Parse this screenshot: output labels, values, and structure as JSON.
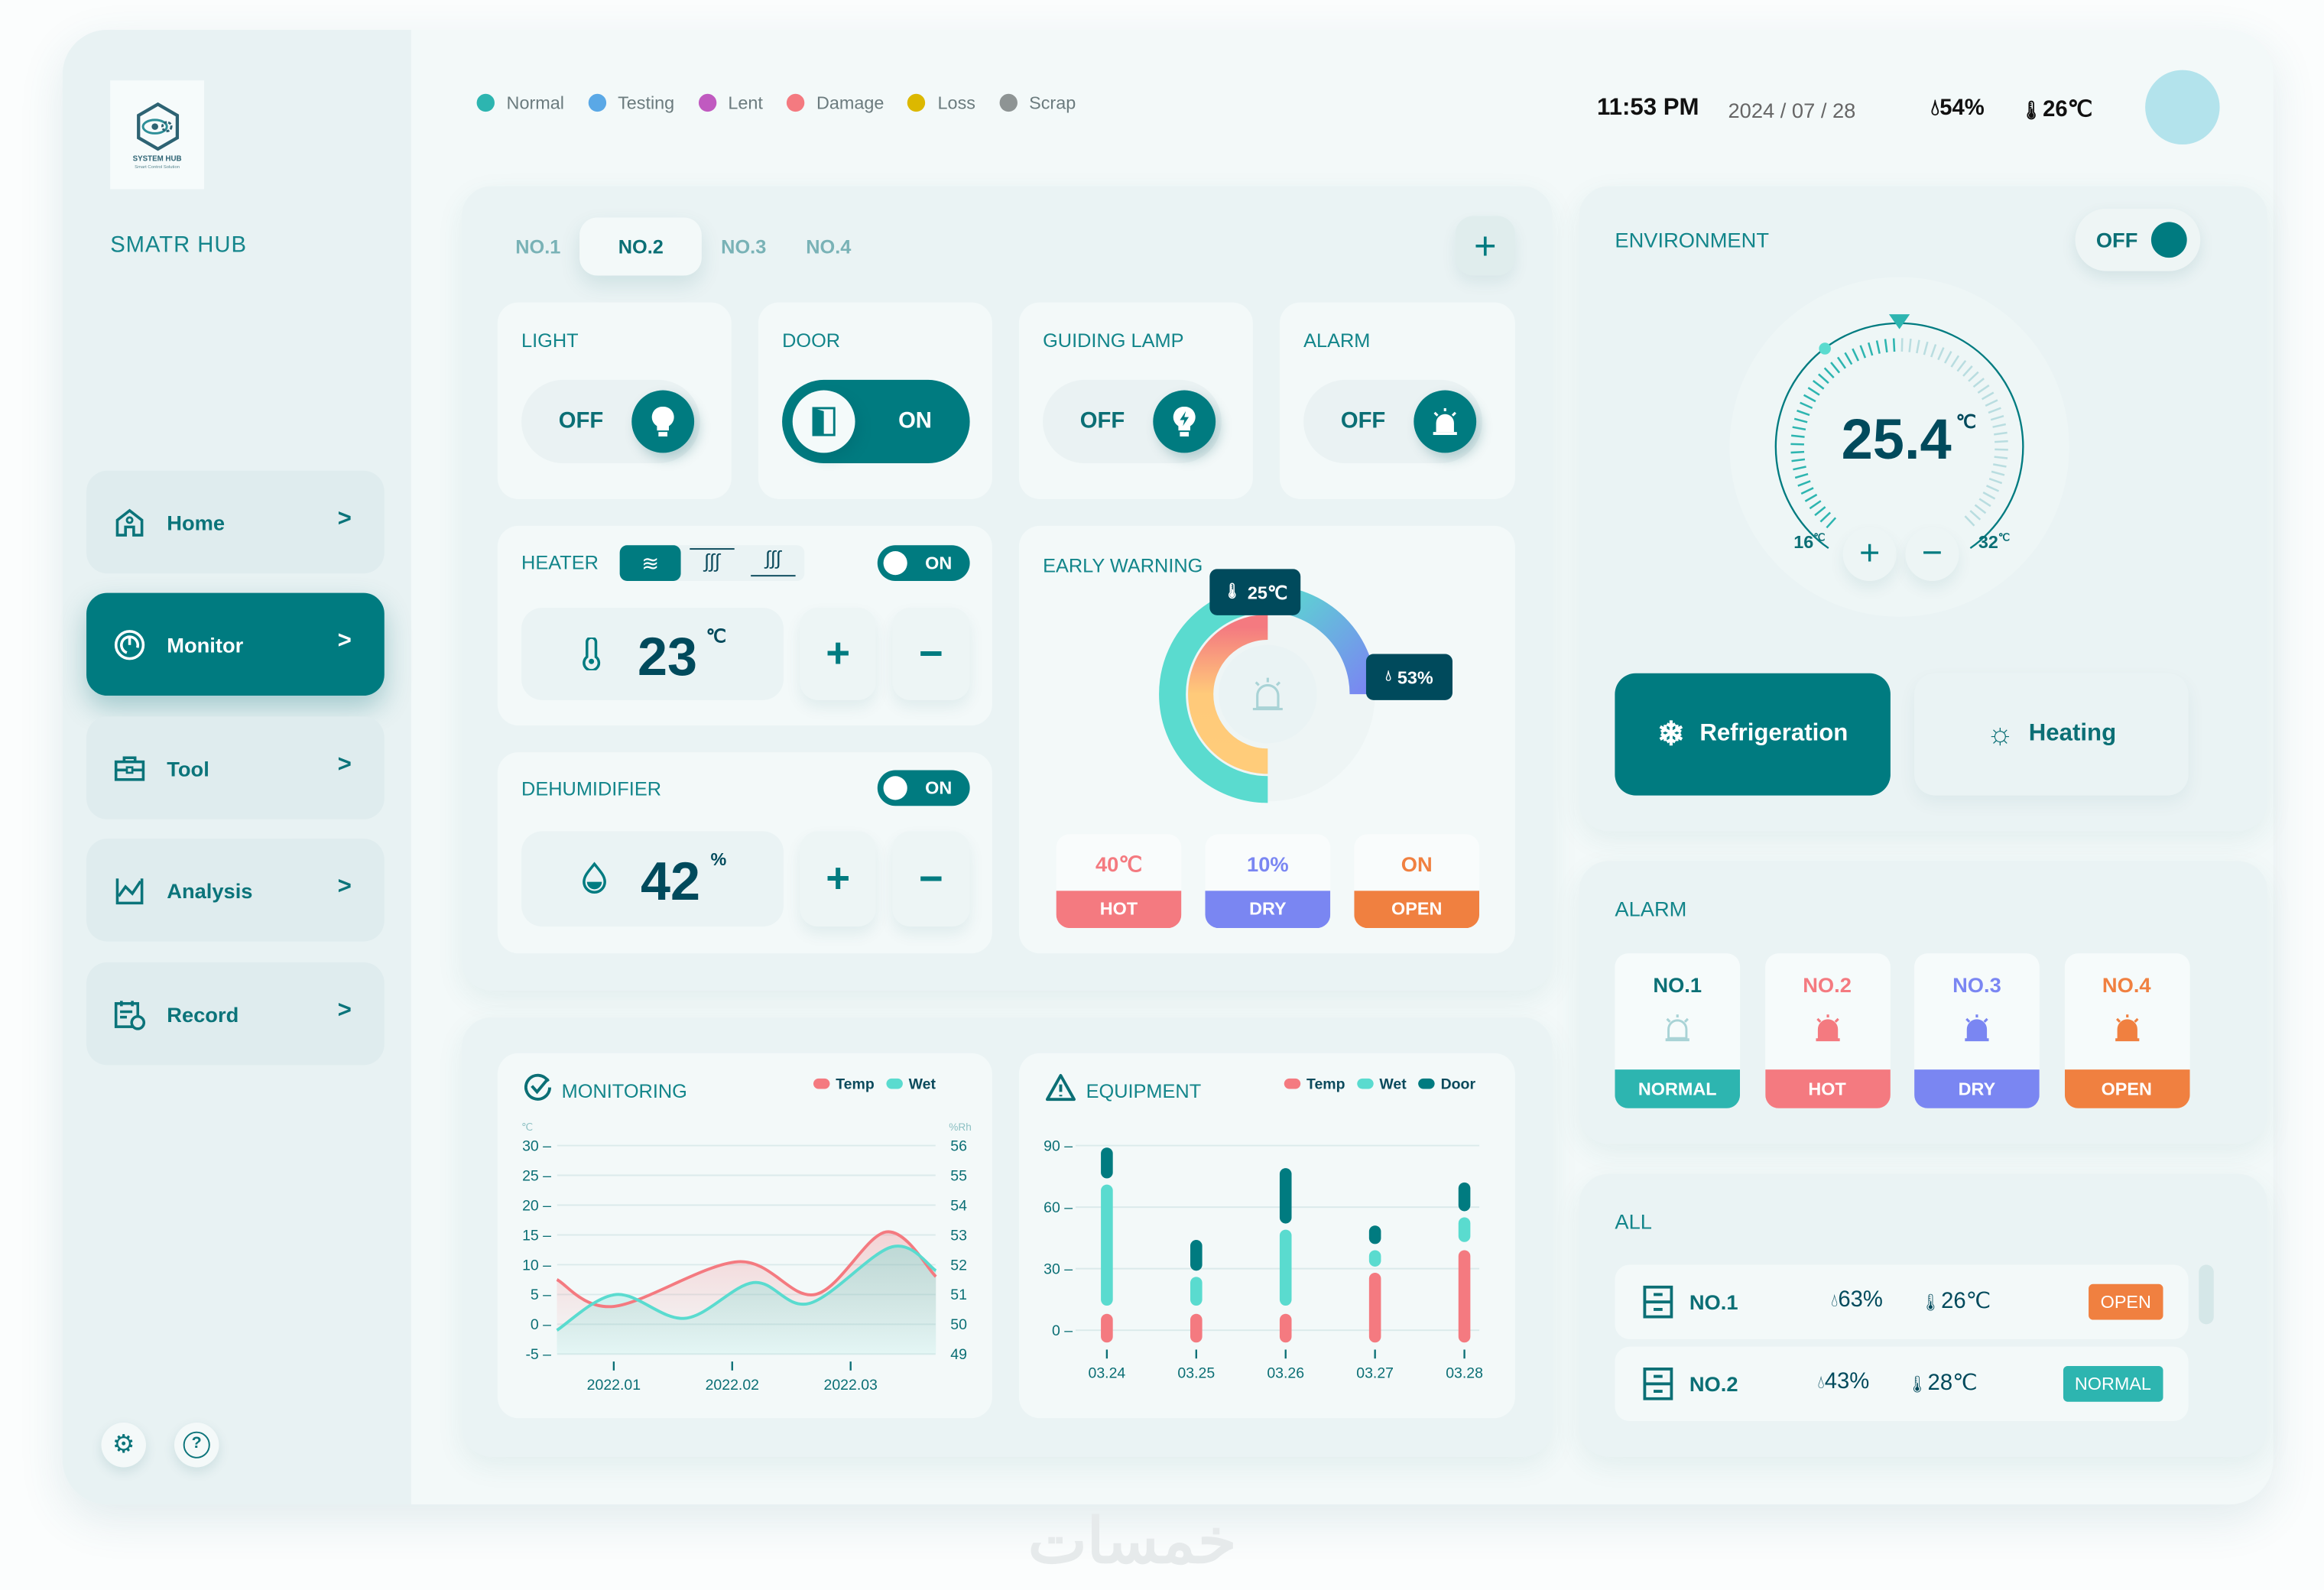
{
  "brand": {
    "logo_text": "SYSTEM HUB",
    "logo_tagline": "Smart Control Solution",
    "name": "SMATR HUB"
  },
  "nav": [
    {
      "label": "Home",
      "icon": "home-icon",
      "active": false
    },
    {
      "label": "Monitor",
      "icon": "monitor-icon",
      "active": true
    },
    {
      "label": "Tool",
      "icon": "toolbox-icon",
      "active": false
    },
    {
      "label": "Analysis",
      "icon": "analysis-chart-icon",
      "active": false
    },
    {
      "label": "Record",
      "icon": "calendar-clock-icon",
      "active": false
    }
  ],
  "sidebar_footer": {
    "settings_icon": "gear-icon",
    "help_icon": "help-icon"
  },
  "legend": [
    {
      "label": "Normal",
      "color": "#2db5b0"
    },
    {
      "label": "Testing",
      "color": "#5aa8e6"
    },
    {
      "label": "Lent",
      "color": "#c05ac0"
    },
    {
      "label": "Damage",
      "color": "#f47a80"
    },
    {
      "label": "Loss",
      "color": "#dcb800"
    },
    {
      "label": "Scrap",
      "color": "#8e9494"
    }
  ],
  "header": {
    "time": "11:53 PM",
    "date": "2024 / 07 / 28",
    "humidity": "54%",
    "temperature": "26℃",
    "avatar_color": "#b3e3ec"
  },
  "tabs": {
    "items": [
      "NO.1",
      "NO.2",
      "NO.3",
      "NO.4"
    ],
    "active": "NO.2",
    "add_icon": "plus-icon"
  },
  "devices": [
    {
      "label": "LIGHT",
      "state": "OFF",
      "icon": "lightbulb-icon"
    },
    {
      "label": "DOOR",
      "state": "ON",
      "icon": "door-icon"
    },
    {
      "label": "GUIDING LAMP",
      "state": "OFF",
      "icon": "lamp-bolt-icon"
    },
    {
      "label": "ALARM",
      "state": "OFF",
      "icon": "siren-icon"
    }
  ],
  "heater": {
    "label": "HEATER",
    "modes": [
      "fan-icon",
      "heat-top-icon",
      "heat-bottom-icon"
    ],
    "active_mode": "fan-icon",
    "toggle": "ON",
    "value": "23",
    "unit": "℃",
    "plus": "+",
    "minus": "−"
  },
  "dehumidifier": {
    "label": "DEHUMIDIFIER",
    "toggle": "ON",
    "value": "42",
    "unit": "%",
    "plus": "+",
    "minus": "−"
  },
  "early_warning": {
    "title": "EARLY WARNING",
    "temp_tip": "25℃",
    "humidity_tip": "53%",
    "tiles": [
      {
        "value": "40℃",
        "status": "HOT",
        "color": "#f47a80",
        "icon": "thermometer-icon"
      },
      {
        "value": "10%",
        "status": "DRY",
        "color": "#7a86f2",
        "icon": "droplet-icon"
      },
      {
        "value": "ON",
        "status": "OPEN",
        "color": "#f08040",
        "icon": "door-icon"
      }
    ]
  },
  "environment": {
    "title": "ENVIRONMENT",
    "toggle": "OFF",
    "value": "25.4",
    "unit": "℃",
    "min": "16",
    "max": "32",
    "range_unit": "℃",
    "plus": "+",
    "minus": "−",
    "modes": [
      {
        "label": "Refrigeration",
        "icon": "snowflake-icon",
        "active": true
      },
      {
        "label": "Heating",
        "icon": "sun-icon",
        "active": false
      }
    ]
  },
  "alarm": {
    "title": "ALARM",
    "items": [
      {
        "label": "NO.1",
        "status": "NORMAL",
        "color": "#2db5b0",
        "icon_color": "#a9d3d6"
      },
      {
        "label": "NO.2",
        "status": "HOT",
        "color": "#f47a80",
        "icon_color": "#f47a80"
      },
      {
        "label": "NO.3",
        "status": "DRY",
        "color": "#7a86f2",
        "icon_color": "#7a86f2"
      },
      {
        "label": "NO.4",
        "status": "OPEN",
        "color": "#f08040",
        "icon_color": "#f08040"
      }
    ]
  },
  "all": {
    "title": "ALL",
    "rows": [
      {
        "label": "NO.1",
        "humidity": "63%",
        "temperature": "26℃",
        "status": "OPEN",
        "color": "#f08040"
      },
      {
        "label": "NO.2",
        "humidity": "43%",
        "temperature": "28℃",
        "status": "NORMAL",
        "color": "#2db5b0"
      }
    ]
  },
  "chart_data": [
    {
      "type": "line",
      "title": "MONITORING",
      "left_unit": "℃",
      "right_unit": "%Rh",
      "x_ticks": [
        "2022.01",
        "2022.02",
        "2022.03"
      ],
      "y_left_ticks": [
        30,
        25,
        20,
        15,
        10,
        5,
        0,
        -5
      ],
      "y_left_range": [
        -5,
        30
      ],
      "y_right_ticks": [
        56,
        55,
        54,
        53,
        52,
        51,
        50,
        49
      ],
      "y_right_range": [
        49,
        56
      ],
      "grid": true,
      "legend_placement": "top-right",
      "series": [
        {
          "name": "Temp",
          "axis": "left",
          "color": "#f47a80",
          "x": [
            0.52,
            1.0,
            2.05,
            2.7,
            3.3,
            3.72
          ],
          "y": [
            7.5,
            3,
            10.5,
            5,
            15.5,
            8
          ]
        },
        {
          "name": "Wet",
          "axis": "right",
          "color": "#5adbcf",
          "x": [
            0.52,
            1.02,
            1.6,
            2.18,
            2.65,
            3.35,
            3.72
          ],
          "y": [
            49.8,
            51.0,
            50.2,
            51.4,
            50.7,
            52.6,
            51.8
          ]
        }
      ]
    },
    {
      "type": "bar",
      "title": "EQUIPMENT",
      "categories": [
        "03.24",
        "03.25",
        "03.26",
        "03.27",
        "03.28"
      ],
      "y_ticks": [
        90,
        60,
        30,
        0
      ],
      "ylim": [
        0,
        90
      ],
      "grid": true,
      "legend_placement": "top-right",
      "series": [
        {
          "name": "Temp",
          "color": "#f47a80",
          "ranges": [
            [
              -6,
              8
            ],
            [
              -6,
              8
            ],
            [
              -6,
              8
            ],
            [
              -6,
              28
            ],
            [
              -6,
              39
            ]
          ]
        },
        {
          "name": "Wet",
          "color": "#5adbcf",
          "ranges": [
            [
              12,
              71
            ],
            [
              12,
              26
            ],
            [
              12,
              49
            ],
            [
              31,
              39
            ],
            [
              43,
              55
            ]
          ]
        },
        {
          "name": "Door",
          "color": "#007b80",
          "ranges": [
            [
              74,
              89
            ],
            [
              29,
              44
            ],
            [
              52,
              79
            ],
            [
              42,
              51
            ],
            [
              58,
              72
            ]
          ]
        }
      ]
    }
  ],
  "watermark": "خمسات"
}
